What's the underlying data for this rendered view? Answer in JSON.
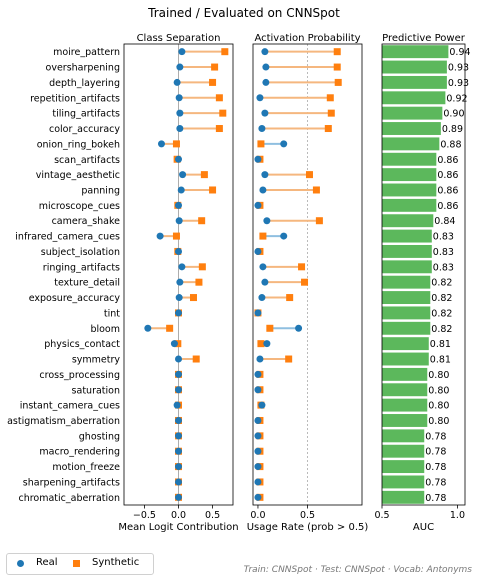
{
  "title": "Trained / Evaluated on CNNSpot",
  "footer": "Train: CNNSpot · Test: CNNSpot · Vocab: Antonyms",
  "legend": {
    "real": "Real",
    "synthetic": "Synthetic"
  },
  "colors": {
    "real": "#1f77b4",
    "synthetic": "#ff7f0e",
    "connector": "#f5b77f",
    "connector_real": "#8fbfe0",
    "bar": "#5cb85c"
  },
  "chart_data": [
    {
      "type": "dot",
      "panel": "class-separation",
      "title": "Class Separation",
      "xlabel": "Mean Logit Contribution",
      "xlim": [
        -0.8,
        0.8
      ],
      "xticks": [
        "−0.5",
        "0.0",
        "0.5"
      ],
      "xtick_values": [
        -0.5,
        0.0,
        0.5
      ],
      "vline": 0,
      "categories": [
        "moire_pattern",
        "oversharpening",
        "depth_layering",
        "repetition_artifacts",
        "tiling_artifacts",
        "color_accuracy",
        "onion_ring_bokeh",
        "scan_artifacts",
        "vintage_aesthetic",
        "panning",
        "microscope_cues",
        "camera_shake",
        "infrared_camera_cues",
        "subject_isolation",
        "ringing_artifacts",
        "texture_detail",
        "exposure_accuracy",
        "tint",
        "bloom",
        "physics_contact",
        "symmetry",
        "cross_processing",
        "saturation",
        "instant_camera_cues",
        "astigmatism_aberration",
        "ghosting",
        "macro_rendering",
        "motion_freeze",
        "sharpening_artifacts",
        "chromatic_aberration"
      ],
      "series": [
        {
          "name": "Real",
          "values": [
            0.05,
            0.02,
            -0.02,
            0.01,
            0.02,
            0.02,
            -0.25,
            0.0,
            0.06,
            0.04,
            0.0,
            0.01,
            -0.27,
            0.0,
            0.05,
            0.02,
            0.01,
            0.0,
            -0.45,
            -0.06,
            0.0,
            0.0,
            0.0,
            -0.02,
            0.0,
            0.0,
            0.0,
            0.0,
            0.0,
            0.0
          ]
        },
        {
          "name": "Synthetic",
          "values": [
            0.68,
            0.53,
            0.5,
            0.6,
            0.65,
            0.6,
            -0.03,
            -0.02,
            0.38,
            0.5,
            -0.01,
            0.34,
            -0.03,
            -0.01,
            0.35,
            0.3,
            0.22,
            0.0,
            -0.13,
            -0.01,
            0.26,
            0.0,
            0.0,
            0.0,
            0.0,
            0.0,
            0.0,
            0.0,
            0.0,
            0.0
          ]
        }
      ]
    },
    {
      "type": "dot",
      "panel": "activation-probability",
      "title": "Activation Probability",
      "xlabel": "Usage Rate (prob > 0.5)",
      "xlim": [
        -0.05,
        1.05
      ],
      "xticks": [
        "0.0",
        "0.5"
      ],
      "xtick_values": [
        0.0,
        0.5
      ],
      "vline": 0.5,
      "categories": [
        "moire_pattern",
        "oversharpening",
        "depth_layering",
        "repetition_artifacts",
        "tiling_artifacts",
        "color_accuracy",
        "onion_ring_bokeh",
        "scan_artifacts",
        "vintage_aesthetic",
        "panning",
        "microscope_cues",
        "camera_shake",
        "infrared_camera_cues",
        "subject_isolation",
        "ringing_artifacts",
        "texture_detail",
        "exposure_accuracy",
        "tint",
        "bloom",
        "physics_contact",
        "symmetry",
        "cross_processing",
        "saturation",
        "instant_camera_cues",
        "astigmatism_aberration",
        "ghosting",
        "macro_rendering",
        "motion_freeze",
        "sharpening_artifacts",
        "chromatic_aberration"
      ],
      "series": [
        {
          "name": "Real",
          "values": [
            0.07,
            0.08,
            0.08,
            0.02,
            0.07,
            0.04,
            0.26,
            0.0,
            0.07,
            0.05,
            0.0,
            0.09,
            0.26,
            0.0,
            0.05,
            0.07,
            0.04,
            0.0,
            0.41,
            0.09,
            0.02,
            0.0,
            0.0,
            0.04,
            0.0,
            0.0,
            0.0,
            0.0,
            0.0,
            0.0
          ]
        },
        {
          "name": "Synthetic",
          "values": [
            0.8,
            0.8,
            0.81,
            0.73,
            0.74,
            0.71,
            0.03,
            0.02,
            0.52,
            0.59,
            0.02,
            0.62,
            0.05,
            0.02,
            0.44,
            0.47,
            0.32,
            0.0,
            0.12,
            0.03,
            0.31,
            0.02,
            0.02,
            0.03,
            0.02,
            0.02,
            0.02,
            0.02,
            0.02,
            0.02
          ]
        }
      ]
    },
    {
      "type": "bar",
      "panel": "predictive-power",
      "title": "Predictive Power",
      "xlabel": "AUC",
      "xlim": [
        0.5,
        1.05
      ],
      "xticks": [
        "0.5",
        "1.0"
      ],
      "xtick_values": [
        0.5,
        1.0
      ],
      "categories": [
        "moire_pattern",
        "oversharpening",
        "depth_layering",
        "repetition_artifacts",
        "tiling_artifacts",
        "color_accuracy",
        "onion_ring_bokeh",
        "scan_artifacts",
        "vintage_aesthetic",
        "panning",
        "microscope_cues",
        "camera_shake",
        "infrared_camera_cues",
        "subject_isolation",
        "ringing_artifacts",
        "texture_detail",
        "exposure_accuracy",
        "tint",
        "bloom",
        "physics_contact",
        "symmetry",
        "cross_processing",
        "saturation",
        "instant_camera_cues",
        "astigmatism_aberration",
        "ghosting",
        "macro_rendering",
        "motion_freeze",
        "sharpening_artifacts",
        "chromatic_aberration"
      ],
      "values": [
        0.94,
        0.93,
        0.93,
        0.92,
        0.9,
        0.89,
        0.88,
        0.86,
        0.86,
        0.86,
        0.86,
        0.84,
        0.83,
        0.83,
        0.83,
        0.82,
        0.82,
        0.82,
        0.82,
        0.81,
        0.81,
        0.8,
        0.8,
        0.8,
        0.8,
        0.78,
        0.78,
        0.78,
        0.78,
        0.78
      ],
      "labels": [
        "0.94",
        "0.93",
        "0.93",
        "0.92",
        "0.90",
        "0.89",
        "0.88",
        "0.86",
        "0.86",
        "0.86",
        "0.86",
        "0.84",
        "0.83",
        "0.83",
        "0.83",
        "0.82",
        "0.82",
        "0.82",
        "0.82",
        "0.81",
        "0.81",
        "0.80",
        "0.80",
        "0.80",
        "0.80",
        "0.78",
        "0.78",
        "0.78",
        "0.78",
        "0.78"
      ]
    }
  ]
}
